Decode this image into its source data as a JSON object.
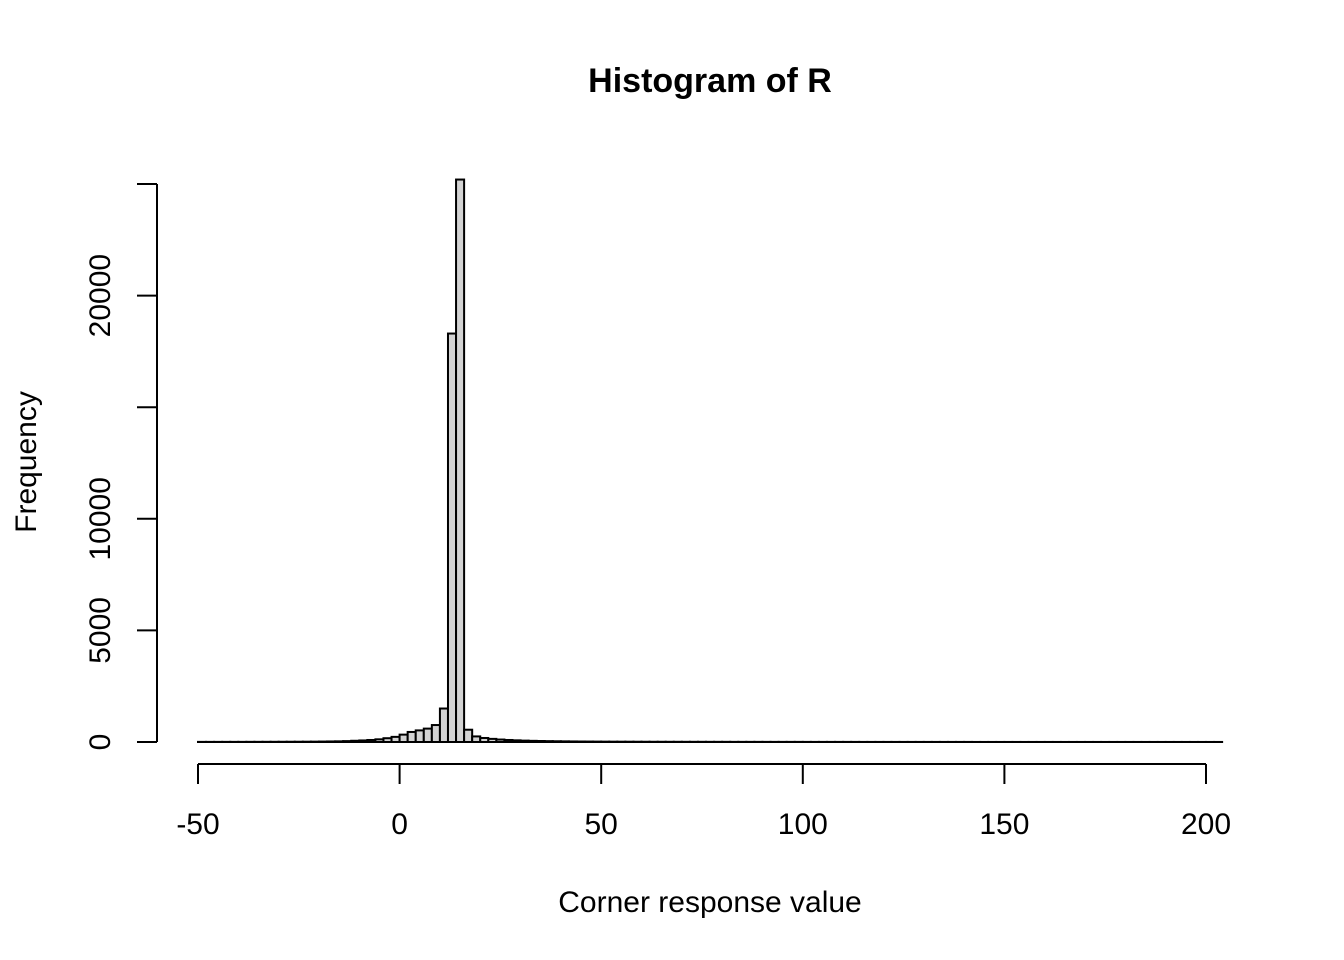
{
  "chart_data": {
    "type": "bar",
    "subtype": "histogram",
    "title": "Histogram of R",
    "xlabel": "Corner response value",
    "ylabel": "Frequency",
    "bin_width": 2,
    "bin_start": -50,
    "bin_end": 204,
    "xlim": [
      -50,
      204
    ],
    "ylim": [
      0,
      25200
    ],
    "x_ticks": [
      -50,
      0,
      50,
      100,
      150,
      200
    ],
    "x_tick_labels": [
      "-50",
      "0",
      "50",
      "100",
      "150",
      "200"
    ],
    "y_ticks": [
      0,
      5000,
      10000,
      15000,
      20000,
      25000
    ],
    "y_tick_labels": [
      "0",
      "5000",
      "10000",
      "",
      "20000",
      ""
    ],
    "bar_fill": "#d3d3d3",
    "bar_stroke": "#000000",
    "counts": [
      5,
      5,
      5,
      6,
      6,
      6,
      7,
      7,
      8,
      9,
      10,
      11,
      12,
      14,
      16,
      20,
      25,
      30,
      40,
      55,
      70,
      90,
      120,
      170,
      230,
      330,
      450,
      520,
      600,
      760,
      1500,
      18300,
      25200,
      550,
      250,
      180,
      140,
      110,
      90,
      75,
      62,
      52,
      45,
      38,
      33,
      29,
      25,
      22,
      20,
      18,
      16,
      15,
      14,
      13,
      12,
      11,
      10,
      10,
      9,
      9,
      8,
      8,
      8,
      7,
      7,
      7,
      6,
      6,
      6,
      6,
      5,
      5,
      5,
      5,
      5,
      4,
      4,
      4,
      4,
      4,
      4,
      4,
      3,
      3,
      3,
      3,
      3,
      3,
      3,
      3,
      3,
      3,
      3,
      3,
      3,
      3,
      2,
      2,
      2,
      2,
      2,
      2,
      2,
      2,
      2,
      2,
      2,
      2,
      2,
      2,
      2,
      2,
      2,
      2,
      2,
      2,
      2,
      2,
      2,
      2,
      2,
      2,
      2,
      2,
      2,
      2,
      2
    ]
  }
}
